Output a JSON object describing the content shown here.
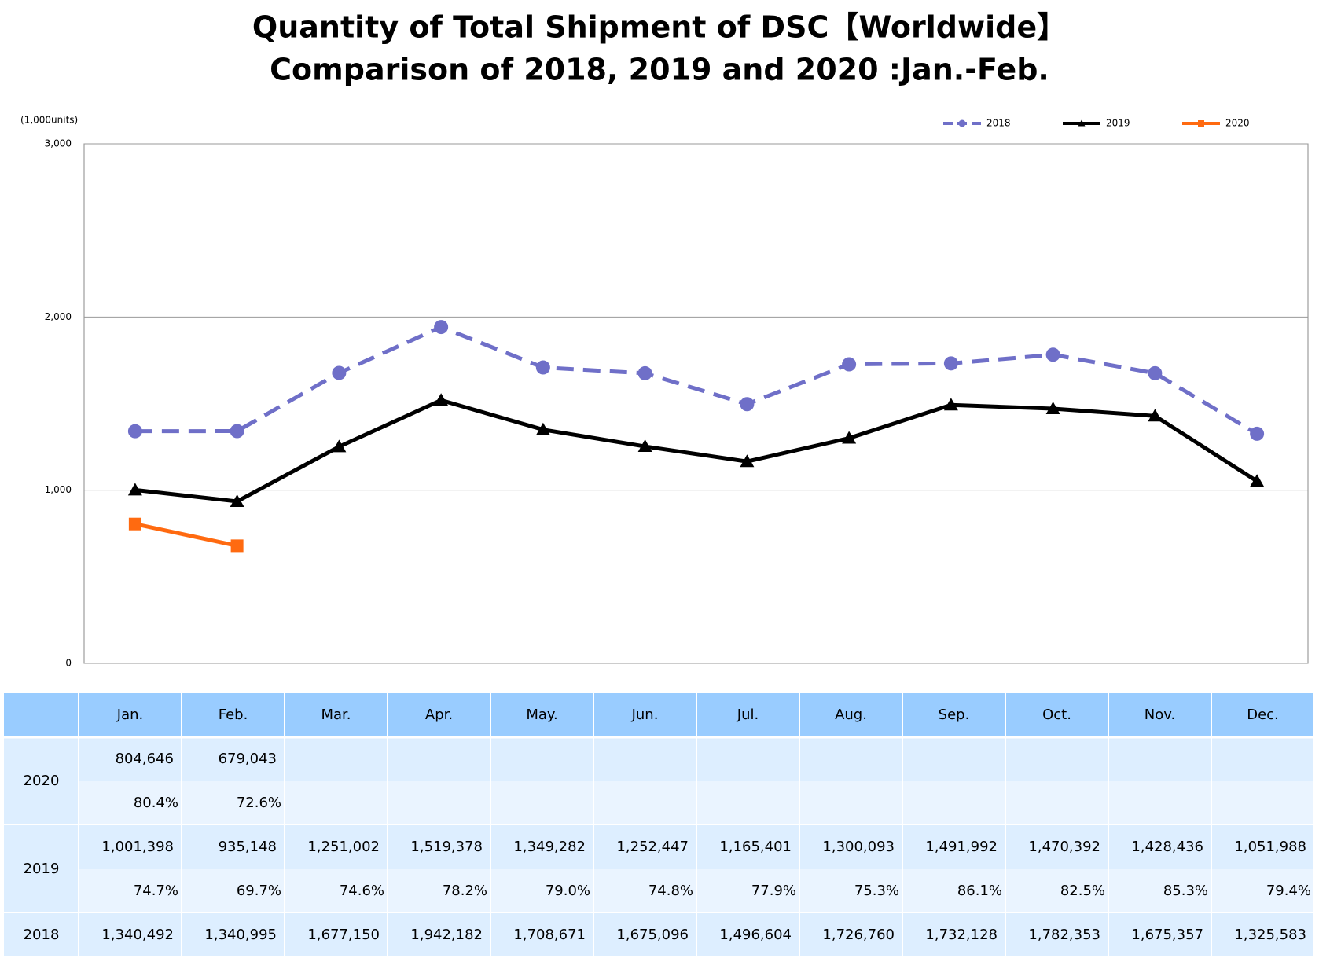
{
  "chart_data": {
    "type": "line",
    "title": [
      "Quantity of Total Shipment of DSC【Worldwide】",
      "Comparison of 2018, 2019 and 2020 :Jan.-Feb."
    ],
    "y_axis_label": "(1,000units)",
    "categories": [
      "Jan.",
      "Feb.",
      "Mar.",
      "Apr.",
      "May.",
      "Jun.",
      "Jul.",
      "Aug.",
      "Sep.",
      "Oct.",
      "Nov.",
      "Dec."
    ],
    "ylim": [
      0,
      3000
    ],
    "yticks": [
      0,
      {
        "value": 1000,
        "label": "1,000"
      },
      {
        "value": 2000,
        "label": "2,000"
      },
      {
        "value": 3000,
        "label": "3,000"
      }
    ],
    "grid": true,
    "legend": "top-right",
    "series": [
      {
        "name": "2018",
        "color": "#6f6fc8",
        "dash": true,
        "marker": "circle",
        "values": [
          1340.492,
          1340.995,
          1677.15,
          1942.182,
          1708.671,
          1675.096,
          1496.604,
          1726.76,
          1732.128,
          1782.353,
          1675.357,
          1325.583
        ],
        "value_labels": [
          "1,340,492",
          "1,340,995",
          "1,677,150",
          "1,942,182",
          "1,708,671",
          "1,675,096",
          "1,496,604",
          "1,726,760",
          "1,732,128",
          "1,782,353",
          "1,675,357",
          "1,325,583"
        ]
      },
      {
        "name": "2019",
        "color": "#000000",
        "marker": "triangle",
        "values": [
          1001.398,
          935.148,
          1251.002,
          1519.378,
          1349.282,
          1252.447,
          1165.401,
          1300.093,
          1491.992,
          1470.392,
          1428.436,
          1051.988
        ],
        "value_labels": [
          "1,001,398",
          "935,148",
          "1,251,002",
          "1,519,378",
          "1,349,282",
          "1,252,447",
          "1,165,401",
          "1,300,093",
          "1,491,992",
          "1,470,392",
          "1,428,436",
          "1,051,988"
        ],
        "ratio_labels": [
          "74.7%",
          "69.7%",
          "74.6%",
          "78.2%",
          "79.0%",
          "74.8%",
          "77.9%",
          "75.3%",
          "86.1%",
          "82.5%",
          "85.3%",
          "79.4%"
        ]
      },
      {
        "name": "2020",
        "color": "#ff6a10",
        "marker": "square",
        "values": [
          804.646,
          679.043,
          null,
          null,
          null,
          null,
          null,
          null,
          null,
          null,
          null,
          null
        ],
        "value_labels": [
          "804,646",
          "679,043",
          null,
          null,
          null,
          null,
          null,
          null,
          null,
          null,
          null,
          null
        ],
        "ratio_labels": [
          "80.4%",
          "72.6%",
          null,
          null,
          null,
          null,
          null,
          null,
          null,
          null,
          null,
          null
        ]
      }
    ]
  }
}
